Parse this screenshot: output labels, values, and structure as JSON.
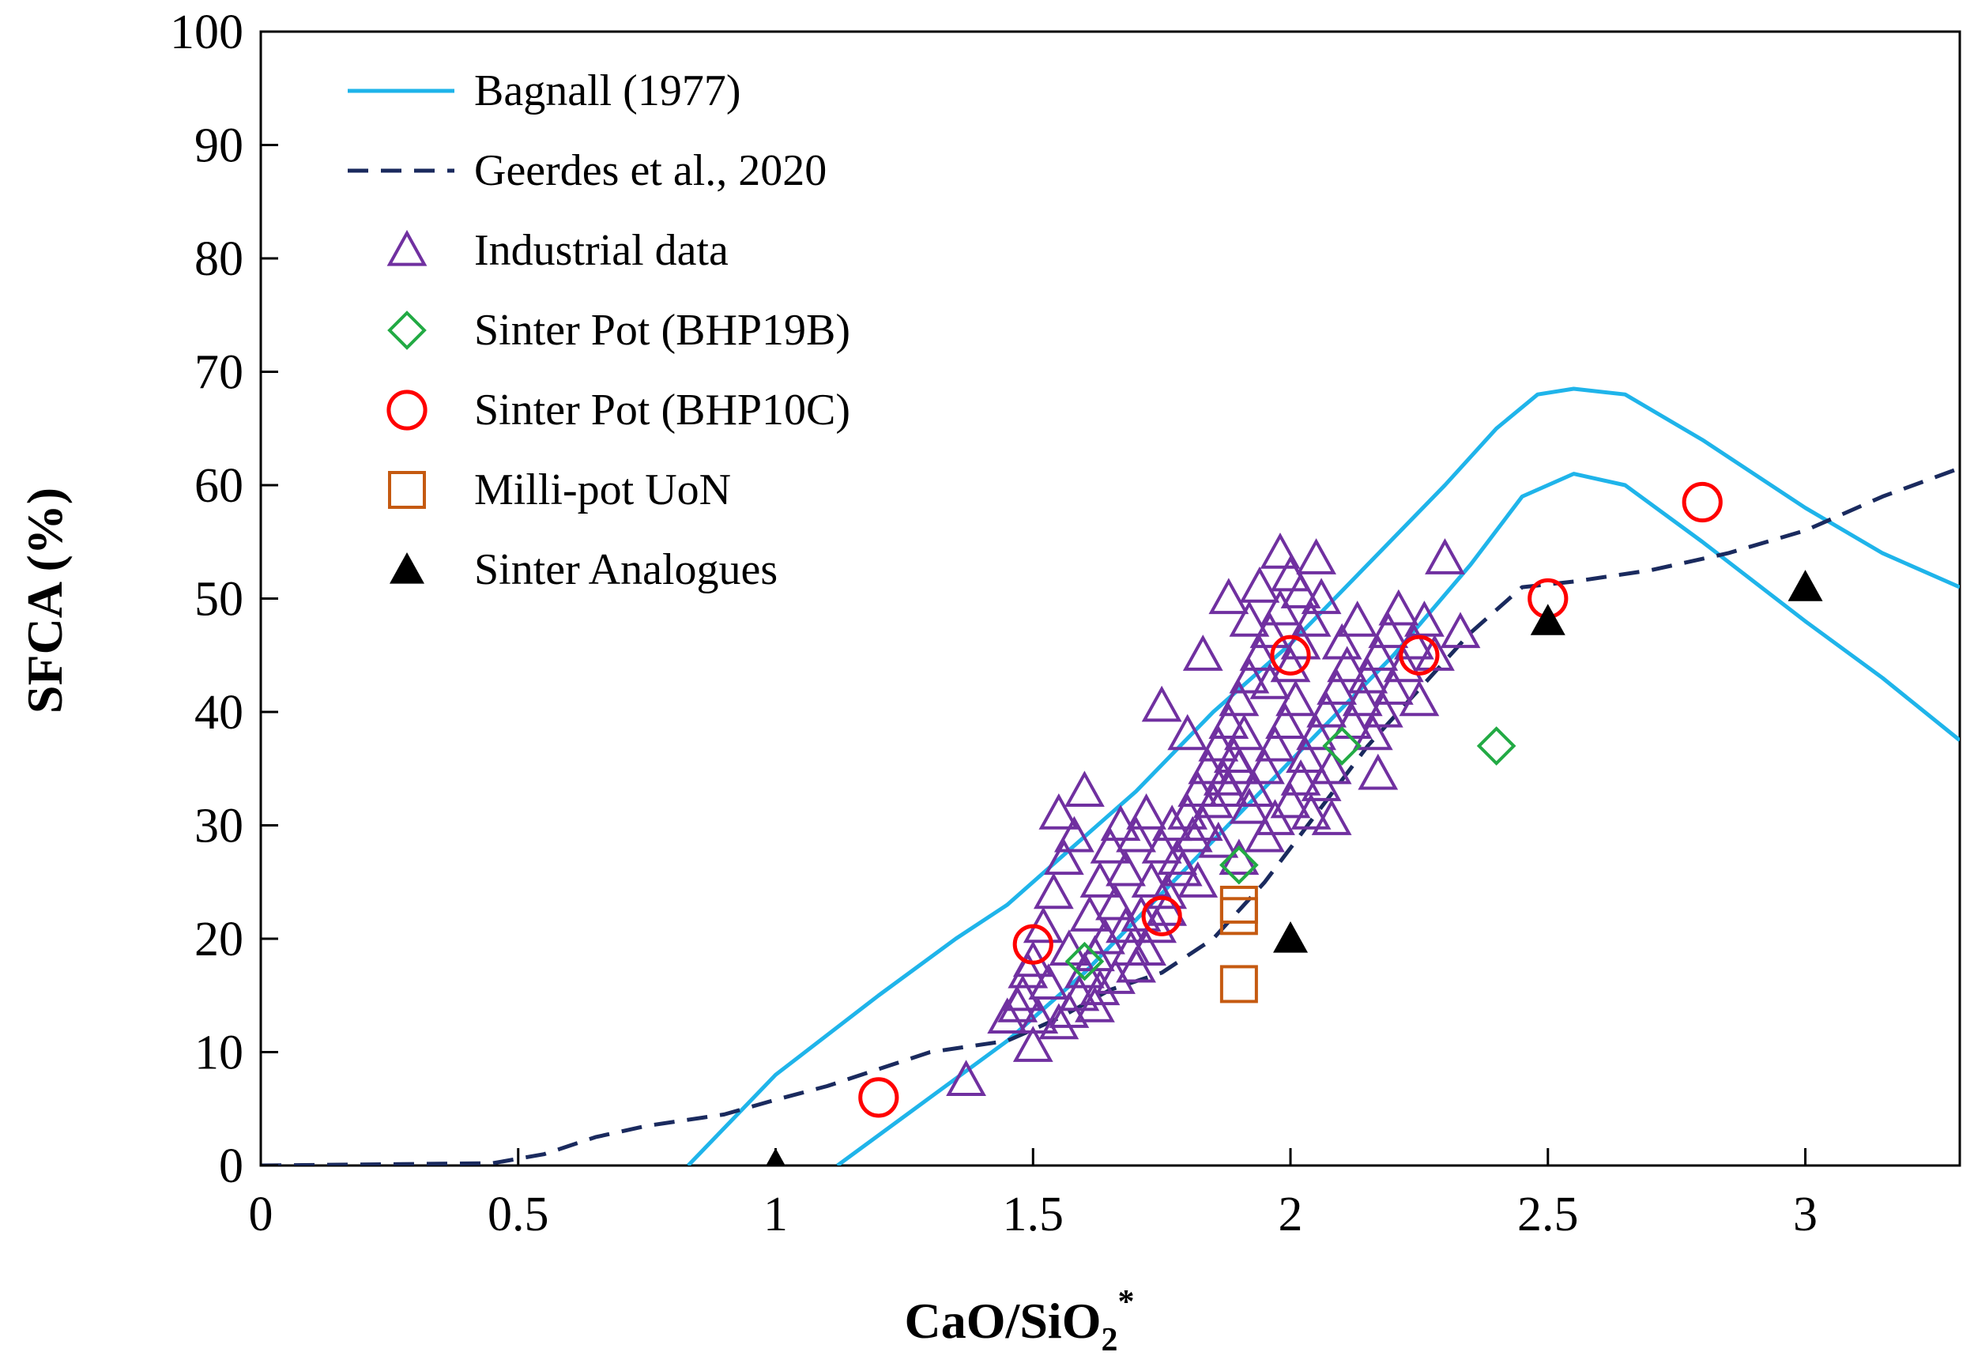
{
  "chart_data": {
    "type": "scatter",
    "title": "",
    "xlabel": "CaO/SiO",
    "xlabel_sub": "2",
    "xlabel_sup": "*",
    "ylabel": "SFCA (%)",
    "xlim": [
      0,
      3.3
    ],
    "ylim": [
      0,
      100
    ],
    "x_ticks": [
      0,
      0.5,
      1,
      1.5,
      2,
      2.5,
      3
    ],
    "x_tick_labels": [
      "0",
      "0.5",
      "1",
      "1.5",
      "2",
      "2.5",
      "3"
    ],
    "y_ticks": [
      0,
      10,
      20,
      30,
      40,
      50,
      60,
      70,
      80,
      90,
      100
    ],
    "y_tick_labels": [
      "0",
      "10",
      "20",
      "30",
      "40",
      "50",
      "60",
      "70",
      "80",
      "90",
      "100"
    ],
    "grid": false,
    "legend_position": "top-left",
    "colors": {
      "bagnall": "#1fb4ea",
      "geerdes": "#1a2a5e",
      "industrial": "#7030a0",
      "bhp19b": "#22aa44",
      "bhp10c": "#ff0000",
      "millipot": "#c55a11",
      "analogues": "#000000"
    },
    "series": [
      {
        "name": "Bagnall (1977)",
        "kind": "line",
        "style": "solid",
        "color": "#1fb4ea",
        "segments": [
          [
            [
              0.83,
              0
            ],
            [
              1.0,
              8
            ],
            [
              1.2,
              15
            ],
            [
              1.35,
              20
            ],
            [
              1.45,
              23
            ],
            [
              1.55,
              27
            ],
            [
              1.7,
              33
            ],
            [
              1.85,
              40
            ],
            [
              2.0,
              46
            ],
            [
              2.15,
              53
            ],
            [
              2.3,
              60
            ],
            [
              2.4,
              65
            ],
            [
              2.48,
              68
            ],
            [
              2.55,
              68.5
            ],
            [
              2.65,
              68
            ],
            [
              2.8,
              64
            ],
            [
              3.0,
              58
            ],
            [
              3.15,
              54
            ],
            [
              3.3,
              51
            ]
          ],
          [
            [
              1.12,
              0
            ],
            [
              1.3,
              6
            ],
            [
              1.45,
              11
            ],
            [
              1.6,
              17
            ],
            [
              1.75,
              24
            ],
            [
              1.9,
              31
            ],
            [
              2.05,
              38
            ],
            [
              2.2,
              45
            ],
            [
              2.35,
              53
            ],
            [
              2.45,
              59
            ],
            [
              2.55,
              61
            ],
            [
              2.65,
              60
            ],
            [
              2.8,
              55
            ],
            [
              3.0,
              48
            ],
            [
              3.15,
              43
            ],
            [
              3.3,
              37.5
            ]
          ]
        ]
      },
      {
        "name": "Geerdes et al., 2020",
        "kind": "line",
        "style": "dashed",
        "color": "#1a2a5e",
        "segments": [
          [
            [
              0,
              0
            ],
            [
              0.45,
              0.2
            ],
            [
              0.55,
              1
            ],
            [
              0.65,
              2.5
            ],
            [
              0.75,
              3.5
            ],
            [
              0.9,
              4.5
            ],
            [
              1.0,
              5.8
            ],
            [
              1.1,
              7
            ],
            [
              1.2,
              8.5
            ],
            [
              1.3,
              10
            ],
            [
              1.45,
              11
            ],
            [
              1.55,
              13
            ],
            [
              1.65,
              15.5
            ],
            [
              1.75,
              17
            ],
            [
              1.85,
              20
            ],
            [
              1.95,
              25
            ],
            [
              2.05,
              31
            ],
            [
              2.15,
              37
            ],
            [
              2.25,
              42
            ],
            [
              2.35,
              47
            ],
            [
              2.45,
              51
            ],
            [
              2.55,
              51.5
            ],
            [
              2.7,
              52.5
            ],
            [
              2.85,
              54
            ],
            [
              3.0,
              56
            ],
            [
              3.15,
              59
            ],
            [
              3.3,
              61.5
            ]
          ]
        ]
      },
      {
        "name": "Industrial data",
        "kind": "scatter",
        "marker": "triangle-open",
        "color": "#7030a0",
        "points": [
          [
            1.37,
            7.5
          ],
          [
            1.5,
            10.5
          ],
          [
            1.45,
            13
          ],
          [
            1.6,
            33
          ],
          [
            1.55,
            31
          ],
          [
            1.75,
            40.5
          ],
          [
            1.83,
            45
          ],
          [
            1.88,
            50
          ],
          [
            1.98,
            54
          ],
          [
            2.05,
            53.5
          ],
          [
            2.3,
            53.5
          ],
          [
            2.33,
            47
          ],
          [
            2.17,
            34.5
          ],
          [
            2.08,
            30.5
          ],
          [
            1.97,
            30.5
          ],
          [
            1.9,
            27
          ],
          [
            1.82,
            25
          ],
          [
            1.8,
            38
          ],
          [
            1.62,
            14
          ],
          [
            1.55,
            12.5
          ],
          [
            1.48,
            15
          ],
          [
            1.5,
            18
          ],
          [
            1.52,
            21
          ],
          [
            1.54,
            24
          ],
          [
            1.56,
            27
          ],
          [
            1.58,
            29
          ],
          [
            1.53,
            16
          ],
          [
            1.57,
            19
          ],
          [
            1.61,
            22
          ],
          [
            1.63,
            25
          ],
          [
            1.65,
            28
          ],
          [
            1.67,
            30
          ],
          [
            1.6,
            17
          ],
          [
            1.64,
            20
          ],
          [
            1.66,
            23
          ],
          [
            1.68,
            26
          ],
          [
            1.7,
            29
          ],
          [
            1.72,
            31
          ],
          [
            1.59,
            15
          ],
          [
            1.62,
            18.5
          ],
          [
            1.69,
            19
          ],
          [
            1.71,
            22
          ],
          [
            1.73,
            25
          ],
          [
            1.75,
            28
          ],
          [
            1.77,
            30
          ],
          [
            1.66,
            16.5
          ],
          [
            1.7,
            17.5
          ],
          [
            1.74,
            21
          ],
          [
            1.76,
            24
          ],
          [
            1.78,
            27
          ],
          [
            1.8,
            31
          ],
          [
            1.82,
            33
          ],
          [
            1.84,
            35
          ],
          [
            1.86,
            37
          ],
          [
            1.88,
            39
          ],
          [
            1.81,
            29
          ],
          [
            1.85,
            32
          ],
          [
            1.87,
            34
          ],
          [
            1.89,
            36
          ],
          [
            1.91,
            38
          ],
          [
            1.9,
            41
          ],
          [
            1.92,
            43
          ],
          [
            1.94,
            45
          ],
          [
            1.96,
            47
          ],
          [
            1.98,
            49
          ],
          [
            1.93,
            33
          ],
          [
            1.95,
            35
          ],
          [
            1.97,
            37
          ],
          [
            1.99,
            39
          ],
          [
            2.01,
            41
          ],
          [
            2.0,
            44
          ],
          [
            2.02,
            46
          ],
          [
            2.04,
            48
          ],
          [
            2.06,
            50
          ],
          [
            2.03,
            36
          ],
          [
            2.05,
            38
          ],
          [
            2.07,
            40
          ],
          [
            2.09,
            42
          ],
          [
            2.11,
            44
          ],
          [
            1.94,
            51
          ],
          [
            2.0,
            52
          ],
          [
            2.02,
            50.5
          ],
          [
            1.92,
            48
          ],
          [
            1.96,
            42.5
          ],
          [
            2.1,
            46
          ],
          [
            2.13,
            48
          ],
          [
            2.15,
            43
          ],
          [
            2.17,
            45
          ],
          [
            2.19,
            47
          ],
          [
            2.21,
            49
          ],
          [
            2.12,
            39
          ],
          [
            2.14,
            41
          ],
          [
            2.16,
            38
          ],
          [
            2.18,
            40
          ],
          [
            2.2,
            42
          ],
          [
            2.22,
            44
          ],
          [
            2.24,
            46
          ],
          [
            2.26,
            48
          ],
          [
            2.28,
            45
          ],
          [
            2.25,
            41
          ],
          [
            1.51,
            13
          ],
          [
            1.49,
            17
          ],
          [
            1.47,
            14
          ],
          [
            1.57,
            13.5
          ],
          [
            1.63,
            15.5
          ],
          [
            1.68,
            21
          ],
          [
            1.72,
            19
          ],
          [
            1.76,
            22.5
          ],
          [
            1.79,
            26
          ],
          [
            1.83,
            30
          ],
          [
            1.86,
            28.5
          ],
          [
            1.88,
            33
          ],
          [
            1.9,
            35
          ],
          [
            1.92,
            31.5
          ],
          [
            1.95,
            29
          ],
          [
            2.0,
            32
          ],
          [
            2.02,
            34
          ],
          [
            2.04,
            31
          ],
          [
            2.06,
            33.5
          ],
          [
            2.08,
            35
          ]
        ]
      },
      {
        "name": "Sinter Pot (BHP19B)",
        "kind": "scatter",
        "marker": "diamond-open",
        "color": "#22aa44",
        "points": [
          [
            1.6,
            18
          ],
          [
            1.9,
            26.5
          ],
          [
            2.1,
            37
          ],
          [
            2.4,
            37
          ]
        ]
      },
      {
        "name": "Sinter Pot (BHP10C)",
        "kind": "scatter",
        "marker": "circle-open",
        "color": "#ff0000",
        "points": [
          [
            1.2,
            6
          ],
          [
            1.5,
            19.5
          ],
          [
            1.75,
            22
          ],
          [
            2.0,
            45
          ],
          [
            2.25,
            45
          ],
          [
            2.5,
            50
          ],
          [
            2.8,
            58.5
          ]
        ]
      },
      {
        "name": "Milli-pot UoN",
        "kind": "scatter",
        "marker": "square-open",
        "color": "#c55a11",
        "points": [
          [
            1.9,
            16
          ],
          [
            1.9,
            22
          ],
          [
            1.9,
            23
          ]
        ]
      },
      {
        "name": "Sinter Analogues",
        "kind": "scatter",
        "marker": "triangle-filled",
        "color": "#000000",
        "points": [
          [
            1.0,
            0
          ],
          [
            2.0,
            20
          ],
          [
            2.5,
            48
          ],
          [
            3.0,
            51
          ]
        ]
      }
    ]
  }
}
